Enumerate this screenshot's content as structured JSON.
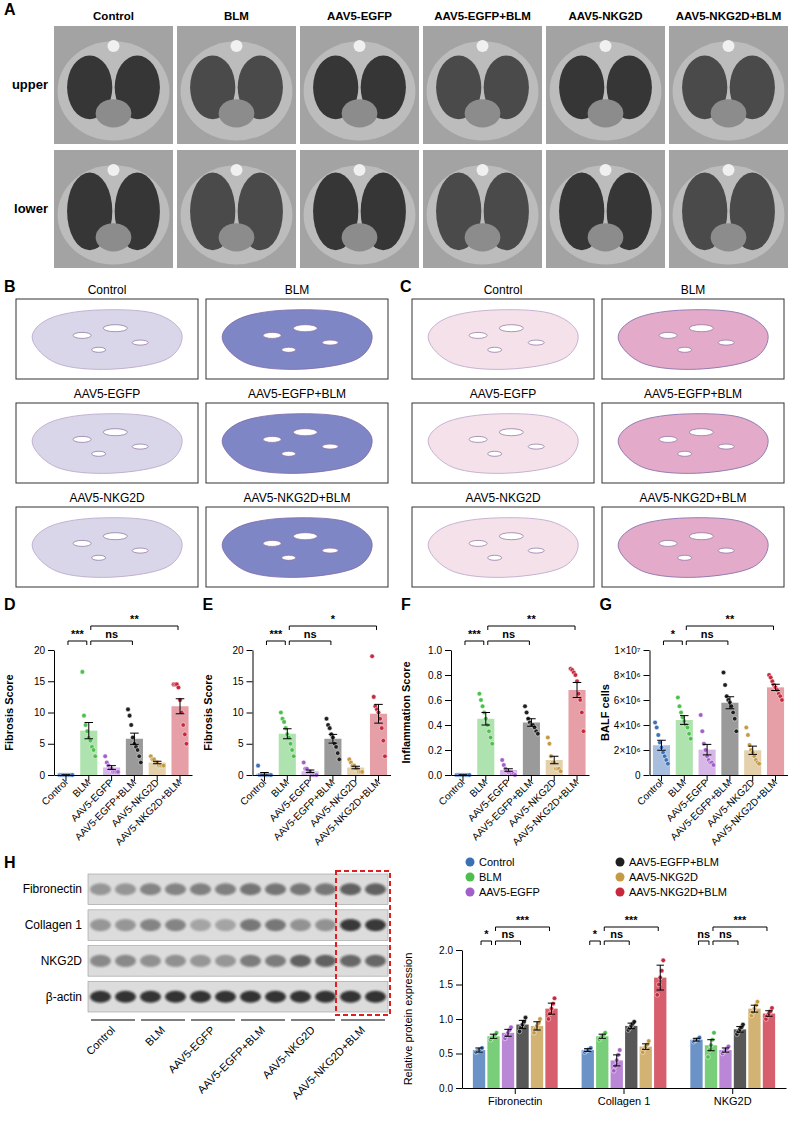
{
  "ct": {
    "panel": "A",
    "columns": [
      "Control",
      "BLM",
      "AAV5-EGFP",
      "AAV5-EGFP+BLM",
      "AAV5-NKG2D",
      "AAV5-NKG2D+BLM"
    ],
    "rows": [
      "upper",
      "lower"
    ]
  },
  "masson": {
    "panel": "B",
    "labels": [
      "Control",
      "BLM",
      "AAV5-EGFP",
      "AAV5-EGFP+BLM",
      "AAV5-NKG2D",
      "AAV5-NKG2D+BLM"
    ]
  },
  "he": {
    "panel": "C",
    "labels": [
      "Control",
      "BLM",
      "AAV5-EGFP",
      "AAV5-EGFP+BLM",
      "AAV5-NKG2D",
      "AAV5-NKG2D+BLM"
    ]
  },
  "blot": {
    "panel": "H",
    "bands": [
      "Fibronectin",
      "Collagen 1",
      "NKG2D",
      "β-actin"
    ],
    "groups": [
      "Control",
      "BLM",
      "AAV5-EGFP",
      "AAV5-EGFP+BLM",
      "AAV5-NKG2D",
      "AAV5-NKG2D+BLM"
    ]
  },
  "chart_data": [
    {
      "type": "bar",
      "panel": "D",
      "y_label": "Fibrosis Score",
      "categories": [
        "Control",
        "BLM",
        "AAV5-EGFP",
        "AAV5-EGFP+BLM",
        "AAV5-NKG2D",
        "AAV5-NKG2D+BLM"
      ],
      "colors": [
        "#3b6fb6",
        "#4cbf4c",
        "#a35fc9",
        "#1f1f1f",
        "#c49a45",
        "#c8283c"
      ],
      "values": [
        0,
        7.1,
        1.2,
        5.8,
        2.0,
        11.0
      ],
      "errors": [
        0,
        1.3,
        0.3,
        0.9,
        0.2,
        1.2
      ],
      "points": [
        [
          0,
          0,
          0,
          0,
          0,
          0,
          0,
          0,
          0
        ],
        [
          16.5,
          9.5,
          8,
          7,
          6,
          5.5,
          4.5,
          4,
          3
        ],
        [
          3,
          2,
          1.5,
          1,
          1,
          0.5,
          0.5,
          0.5,
          0.5
        ],
        [
          10.5,
          9.5,
          8,
          6,
          5,
          4.5,
          4,
          3,
          2
        ],
        [
          3,
          2.5,
          2.5,
          2,
          2,
          1.5,
          1.5,
          1.5,
          1.5
        ],
        [
          14.5,
          14.5,
          14.5,
          14,
          12,
          10,
          8,
          6.5,
          5
        ]
      ],
      "ylim": [
        0,
        20
      ],
      "yticks": [
        0,
        5,
        10,
        15,
        20
      ],
      "annotations": [
        {
          "text": "***",
          "between": [
            "Control",
            "BLM"
          ]
        },
        {
          "text": "ns",
          "between": [
            "BLM",
            "AAV5-EGFP+BLM"
          ]
        },
        {
          "text": "**",
          "between": [
            "BLM",
            "AAV5-NKG2D+BLM"
          ]
        }
      ]
    },
    {
      "type": "bar",
      "panel": "E",
      "y_label": "Fibrosis Score",
      "categories": [
        "Control",
        "BLM",
        "AAV5-EGFP",
        "AAV5-EGFP+BLM",
        "AAV5-NKG2D",
        "AAV5-NKG2D+BLM"
      ],
      "colors": [
        "#3b6fb6",
        "#4cbf4c",
        "#a35fc9",
        "#1f1f1f",
        "#c49a45",
        "#c8283c"
      ],
      "values": [
        0.2,
        6.6,
        0.6,
        5.8,
        1.2,
        9.8
      ],
      "errors": [
        0.2,
        0.8,
        0.2,
        0.7,
        0.2,
        1.5
      ],
      "points": [
        [
          1.5,
          0,
          0,
          0,
          0,
          0,
          0,
          0,
          0
        ],
        [
          10,
          9,
          8.5,
          7.5,
          6.5,
          6,
          5,
          4,
          3
        ],
        [
          2,
          1,
          1,
          0.5,
          0.5,
          0,
          0,
          0,
          0
        ],
        [
          9,
          8,
          7.5,
          6.5,
          6,
          5,
          4.5,
          3.5,
          2.5
        ],
        [
          2.5,
          2,
          1.5,
          1.5,
          1,
          1,
          0.5,
          0.5,
          0.5
        ],
        [
          19,
          12.5,
          11,
          10.5,
          10,
          9,
          7.5,
          5.5,
          3
        ]
      ],
      "ylim": [
        0,
        20
      ],
      "yticks": [
        0,
        5,
        10,
        15,
        20
      ],
      "annotations": [
        {
          "text": "***",
          "between": [
            "Control",
            "BLM"
          ]
        },
        {
          "text": "ns",
          "between": [
            "BLM",
            "AAV5-EGFP+BLM"
          ]
        },
        {
          "text": "*",
          "between": [
            "BLM",
            "AAV5-NKG2D+BLM"
          ]
        }
      ]
    },
    {
      "type": "bar",
      "panel": "F",
      "y_label": "Inflammation Score",
      "categories": [
        "Control",
        "BLM",
        "AAV5-EGFP",
        "AAV5-EGFP+BLM",
        "AAV5-NKG2D",
        "AAV5-NKG2D+BLM"
      ],
      "colors": [
        "#3b6fb6",
        "#4cbf4c",
        "#a35fc9",
        "#1f1f1f",
        "#c49a45",
        "#c8283c"
      ],
      "values": [
        0,
        0.45,
        0.04,
        0.42,
        0.12,
        0.68
      ],
      "errors": [
        0,
        0.05,
        0.01,
        0.03,
        0.03,
        0.06
      ],
      "points": [
        [
          0,
          0,
          0,
          0,
          0,
          0,
          0,
          0,
          0
        ],
        [
          0.65,
          0.6,
          0.55,
          0.5,
          0.45,
          0.4,
          0.35,
          0.3,
          0.25
        ],
        [
          0.12,
          0.08,
          0.05,
          0.03,
          0.02,
          0.02,
          0.01,
          0.01,
          0
        ],
        [
          0.55,
          0.5,
          0.45,
          0.42,
          0.4,
          0.4,
          0.38,
          0.35,
          0.33
        ],
        [
          0.3,
          0.25,
          0.15,
          0.1,
          0.1,
          0.05,
          0.05,
          0.05,
          0.03
        ],
        [
          0.85,
          0.84,
          0.82,
          0.8,
          0.75,
          0.65,
          0.6,
          0.5,
          0.35
        ]
      ],
      "ylim": [
        0,
        1
      ],
      "yticks": [
        {
          "value": 0,
          "label": "0.0"
        },
        0.2,
        0.4,
        0.6,
        0.8,
        {
          "value": 1,
          "label": "1.0"
        }
      ],
      "annotations": [
        {
          "text": "***",
          "between": [
            "Control",
            "BLM"
          ]
        },
        {
          "text": "ns",
          "between": [
            "BLM",
            "AAV5-EGFP+BLM"
          ]
        },
        {
          "text": "**",
          "between": [
            "BLM",
            "AAV5-NKG2D+BLM"
          ]
        }
      ]
    },
    {
      "type": "bar",
      "panel": "G",
      "y_label": "BALF cells",
      "categories": [
        "Control",
        "BLM",
        "AAV5-EGFP",
        "AAV5-EGFP+BLM",
        "AAV5-NKG2D",
        "AAV5-NKG2D+BLM"
      ],
      "colors": [
        "#3b6fb6",
        "#4cbf4c",
        "#a35fc9",
        "#1f1f1f",
        "#c49a45",
        "#c8283c"
      ],
      "values": [
        2380000,
        4400000,
        2030000,
        5780000,
        1980000,
        7010000
      ],
      "errors": [
        400000,
        350000,
        420000,
        480000,
        330000,
        250000
      ],
      "points": [
        [
          4200000,
          3800000,
          3200000,
          2600000,
          2200000,
          1800000,
          1500000,
          1200000,
          900000
        ],
        [
          6200000,
          5500000,
          5000000,
          4600000,
          4300000,
          4000000,
          3800000,
          3300000,
          2900000
        ],
        [
          4800000,
          3500000,
          2500000,
          2000000,
          1500000,
          1200000,
          1000000,
          1000000,
          800000
        ],
        [
          8200000,
          7200000,
          6300000,
          6000000,
          5800000,
          5500000,
          5000000,
          4500000,
          3500000
        ],
        [
          3800000,
          3200000,
          2400000,
          2000000,
          1800000,
          1500000,
          1200000,
          1000000,
          900000
        ],
        [
          8000000,
          7800000,
          7500000,
          7200000,
          7000000,
          6800000,
          6500000,
          6300000,
          6000000
        ]
      ],
      "ylim": [
        0,
        10000000
      ],
      "yticks": [
        0,
        {
          "value": 2000000,
          "label": "2×10⁶"
        },
        {
          "value": 4000000,
          "label": "4×10⁶"
        },
        {
          "value": 6000000,
          "label": "6×10⁶"
        },
        {
          "value": 8000000,
          "label": "8×10⁶"
        },
        {
          "value": 10000000,
          "label": "1×10⁷"
        }
      ],
      "annotations": [
        {
          "text": "*",
          "between": [
            "Control",
            "BLM"
          ]
        },
        {
          "text": "ns",
          "between": [
            "BLM",
            "AAV5-EGFP+BLM"
          ]
        },
        {
          "text": "**",
          "between": [
            "BLM",
            "AAV5-NKG2D+BLM"
          ]
        }
      ]
    },
    {
      "type": "bar",
      "y_label": "Relative protein expression",
      "legend": "top",
      "categories": [
        "Fibronectin",
        "Collagen 1",
        "NKG2D"
      ],
      "series": [
        {
          "name": "Control",
          "color": "#3b6fb6",
          "values": [
            0.55,
            0.55,
            0.7
          ],
          "errors": [
            0.03,
            0.02,
            0.02
          ],
          "points": [
            [
              0.52,
              0.54,
              0.55,
              0.56,
              0.58
            ],
            [
              0.52,
              0.54,
              0.55,
              0.56,
              0.58
            ],
            [
              0.67,
              0.69,
              0.7,
              0.71,
              0.73
            ]
          ]
        },
        {
          "name": "BLM",
          "color": "#4cbf4c",
          "values": [
            0.75,
            0.75,
            0.62
          ],
          "errors": [
            0.03,
            0.03,
            0.08
          ],
          "points": [
            [
              0.7,
              0.73,
              0.75,
              0.77,
              0.8
            ],
            [
              0.7,
              0.73,
              0.75,
              0.77,
              0.8
            ],
            [
              0.45,
              0.55,
              0.62,
              0.7,
              0.8
            ]
          ]
        },
        {
          "name": "AAV5-EGFP",
          "color": "#a35fc9",
          "values": [
            0.8,
            0.4,
            0.55
          ],
          "errors": [
            0.05,
            0.08,
            0.03
          ],
          "points": [
            [
              0.72,
              0.76,
              0.8,
              0.84,
              0.88
            ],
            [
              0.25,
              0.32,
              0.4,
              0.48,
              0.55
            ],
            [
              0.5,
              0.53,
              0.55,
              0.57,
              0.6
            ]
          ]
        },
        {
          "name": "AAV5-EGFP+BLM",
          "color": "#1f1f1f",
          "values": [
            0.92,
            0.9,
            0.85
          ],
          "errors": [
            0.06,
            0.04,
            0.04
          ],
          "points": [
            [
              0.82,
              0.88,
              0.92,
              0.96,
              1.02
            ],
            [
              0.84,
              0.87,
              0.9,
              0.93,
              0.96
            ],
            [
              0.78,
              0.82,
              0.85,
              0.88,
              0.92
            ]
          ]
        },
        {
          "name": "AAV5-NKG2D",
          "color": "#c49a45",
          "values": [
            0.9,
            0.6,
            1.15
          ],
          "errors": [
            0.06,
            0.04,
            0.05
          ],
          "points": [
            [
              0.8,
              0.86,
              0.9,
              0.94,
              1.0
            ],
            [
              0.52,
              0.57,
              0.6,
              0.63,
              0.68
            ],
            [
              1.05,
              1.1,
              1.15,
              1.2,
              1.25
            ]
          ]
        },
        {
          "name": "AAV5-NKG2D+BLM",
          "color": "#c8283c",
          "values": [
            1.15,
            1.6,
            1.08
          ],
          "errors": [
            0.08,
            0.18,
            0.04
          ],
          "points": [
            [
              1.0,
              1.08,
              1.15,
              1.22,
              1.3
            ],
            [
              1.35,
              1.5,
              1.6,
              1.7,
              1.85
            ],
            [
              1.0,
              1.05,
              1.08,
              1.11,
              1.16
            ]
          ]
        }
      ],
      "ylim": [
        0,
        2
      ],
      "yticks": [
        {
          "value": 0,
          "label": "0.0"
        },
        0.5,
        {
          "value": 1,
          "label": "1.0"
        },
        1.5,
        {
          "value": 2,
          "label": "2.0"
        }
      ],
      "annotations": [
        {
          "text": "*",
          "category": "Fibronectin",
          "between": [
            "Control",
            "BLM"
          ]
        },
        {
          "text": "ns",
          "category": "Fibronectin",
          "between": [
            "BLM",
            "AAV5-EGFP+BLM"
          ]
        },
        {
          "text": "***",
          "category": "Fibronectin",
          "between": [
            "BLM",
            "AAV5-NKG2D+BLM"
          ]
        },
        {
          "text": "*",
          "category": "Collagen 1",
          "between": [
            "Control",
            "BLM"
          ]
        },
        {
          "text": "ns",
          "category": "Collagen 1",
          "between": [
            "BLM",
            "AAV5-EGFP+BLM"
          ]
        },
        {
          "text": "***",
          "category": "Collagen 1",
          "between": [
            "BLM",
            "AAV5-NKG2D+BLM"
          ]
        },
        {
          "text": "ns",
          "category": "NKG2D",
          "between": [
            "Control",
            "BLM"
          ]
        },
        {
          "text": "ns",
          "category": "NKG2D",
          "between": [
            "BLM",
            "AAV5-EGFP+BLM"
          ]
        },
        {
          "text": "***",
          "category": "NKG2D",
          "between": [
            "BLM",
            "AAV5-NKG2D+BLM"
          ]
        }
      ]
    }
  ]
}
